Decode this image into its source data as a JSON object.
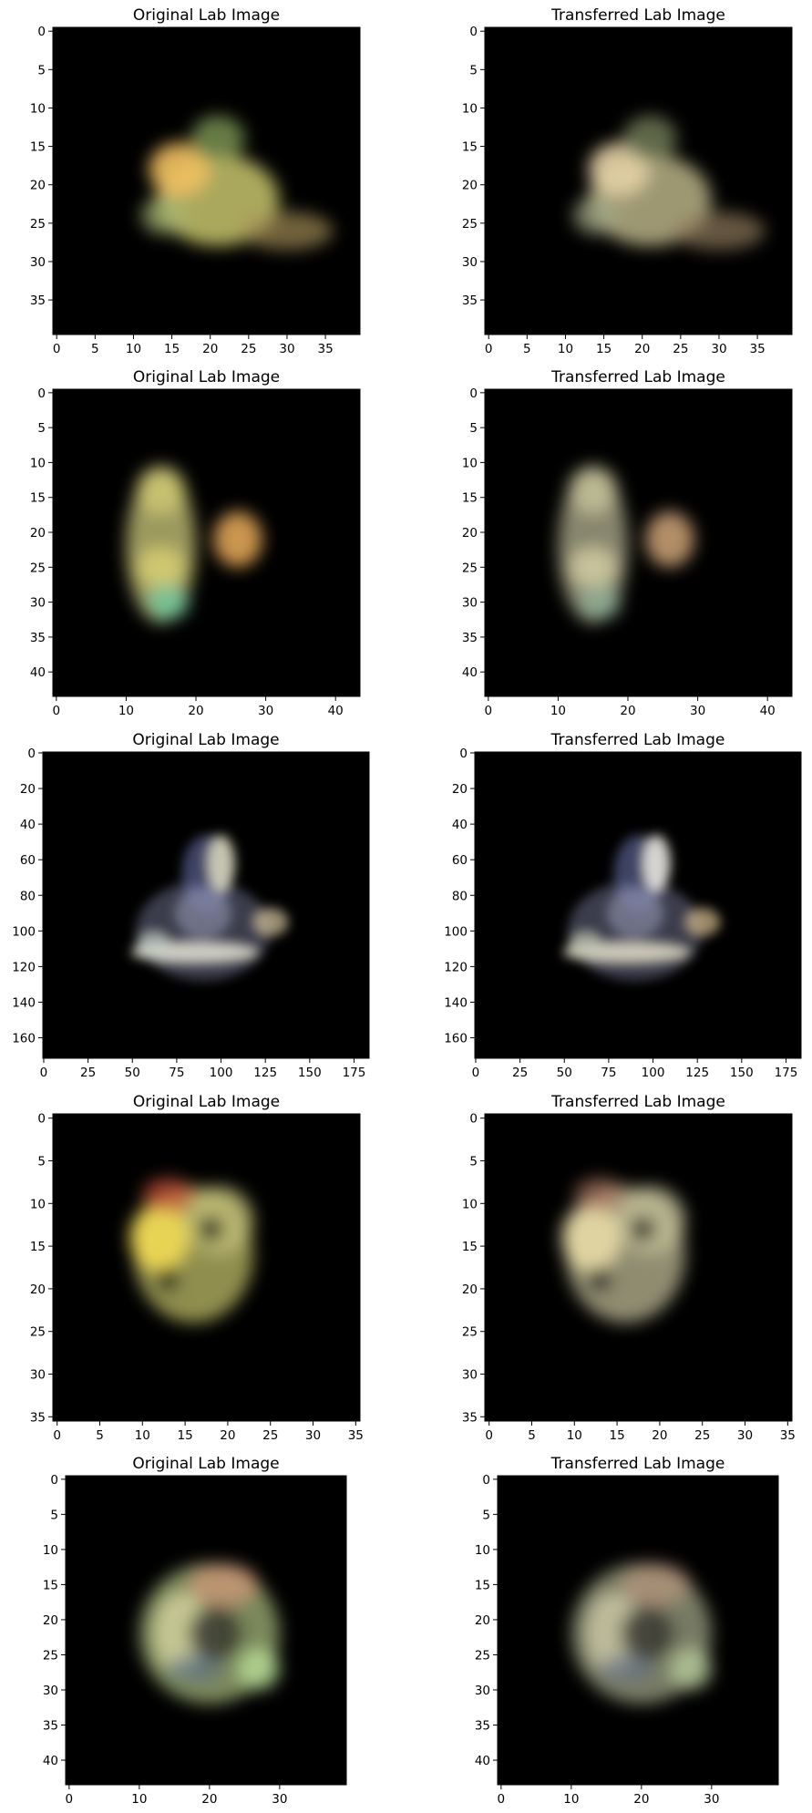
{
  "figure": {
    "background": "#ffffff",
    "image_background": "#000000"
  },
  "chart_data": [
    {
      "type": "heatmap",
      "title": "Original Lab Image",
      "width": 40,
      "height": 40,
      "xticks": [
        0,
        5,
        10,
        15,
        20,
        25,
        30,
        35
      ],
      "yticks": [
        0,
        5,
        10,
        15,
        20,
        25,
        30,
        35
      ],
      "blobs": [
        {
          "cx": 21,
          "cy": 22,
          "rx": 8,
          "ry": 6,
          "color": "#c8c66c",
          "opacity": 0.85
        },
        {
          "cx": 16,
          "cy": 18,
          "rx": 4,
          "ry": 3.5,
          "color": "#f0c060",
          "opacity": 0.9
        },
        {
          "cx": 21,
          "cy": 14,
          "rx": 3.5,
          "ry": 3,
          "color": "#7f9a55",
          "opacity": 0.8
        },
        {
          "cx": 30,
          "cy": 26,
          "rx": 6,
          "ry": 2.5,
          "color": "#a08a55",
          "opacity": 0.7
        },
        {
          "cx": 14,
          "cy": 24,
          "rx": 3,
          "ry": 2.5,
          "color": "#a5b775",
          "opacity": 0.7
        }
      ]
    },
    {
      "type": "heatmap",
      "title": "Transferred Lab Image",
      "width": 40,
      "height": 40,
      "xticks": [
        0,
        5,
        10,
        15,
        20,
        25,
        30,
        35
      ],
      "yticks": [
        0,
        5,
        10,
        15,
        20,
        25,
        30,
        35
      ],
      "blobs": [
        {
          "cx": 21,
          "cy": 22,
          "rx": 8,
          "ry": 6,
          "color": "#b9b386",
          "opacity": 0.85
        },
        {
          "cx": 17,
          "cy": 18,
          "rx": 4,
          "ry": 3.5,
          "color": "#e6d2a6",
          "opacity": 0.9
        },
        {
          "cx": 21,
          "cy": 14,
          "rx": 3.5,
          "ry": 3,
          "color": "#7d8a62",
          "opacity": 0.75
        },
        {
          "cx": 30,
          "cy": 26,
          "rx": 6,
          "ry": 2.5,
          "color": "#8f7b5c",
          "opacity": 0.7
        },
        {
          "cx": 14,
          "cy": 24,
          "rx": 3,
          "ry": 2.5,
          "color": "#a3a987",
          "opacity": 0.7
        }
      ]
    },
    {
      "type": "heatmap",
      "title": "Original Lab Image",
      "width": 44,
      "height": 44,
      "xticks": [
        0,
        10,
        20,
        30,
        40
      ],
      "yticks": [
        0,
        5,
        10,
        15,
        20,
        25,
        30,
        35,
        40
      ],
      "blobs": [
        {
          "cx": 15,
          "cy": 22,
          "rx": 5,
          "ry": 11,
          "color": "#b7b46e",
          "opacity": 0.85
        },
        {
          "cx": 15,
          "cy": 14,
          "rx": 3.5,
          "ry": 3.5,
          "color": "#d1c975",
          "opacity": 0.8
        },
        {
          "cx": 15,
          "cy": 25,
          "rx": 3.5,
          "ry": 3,
          "color": "#d8cf73",
          "opacity": 0.85
        },
        {
          "cx": 16,
          "cy": 30,
          "rx": 3,
          "ry": 2.5,
          "color": "#72c79c",
          "opacity": 0.85
        },
        {
          "cx": 26,
          "cy": 21,
          "rx": 3.5,
          "ry": 4,
          "color": "#e0a558",
          "opacity": 0.9
        }
      ]
    },
    {
      "type": "heatmap",
      "title": "Transferred Lab Image",
      "width": 44,
      "height": 44,
      "xticks": [
        0,
        10,
        20,
        30,
        40
      ],
      "yticks": [
        0,
        5,
        10,
        15,
        20,
        25,
        30,
        35,
        40
      ],
      "blobs": [
        {
          "cx": 15,
          "cy": 22,
          "rx": 5,
          "ry": 11,
          "color": "#a9a88a",
          "opacity": 0.8
        },
        {
          "cx": 15,
          "cy": 14,
          "rx": 3.5,
          "ry": 3.5,
          "color": "#c7c39a",
          "opacity": 0.8
        },
        {
          "cx": 15,
          "cy": 25,
          "rx": 3.5,
          "ry": 3,
          "color": "#d2cda2",
          "opacity": 0.85
        },
        {
          "cx": 16,
          "cy": 30,
          "rx": 3,
          "ry": 2.5,
          "color": "#8fae96",
          "opacity": 0.8
        },
        {
          "cx": 26,
          "cy": 21,
          "rx": 3.5,
          "ry": 4,
          "color": "#d1a77a",
          "opacity": 0.85
        }
      ]
    },
    {
      "type": "heatmap",
      "title": "Original Lab Image",
      "width": 184,
      "height": 172,
      "xticks": [
        0,
        25,
        50,
        75,
        100,
        125,
        150,
        175
      ],
      "yticks": [
        0,
        20,
        40,
        60,
        80,
        100,
        120,
        140,
        160
      ],
      "blobs": [
        {
          "cx": 90,
          "cy": 100,
          "rx": 38,
          "ry": 28,
          "color": "#6c6e8a",
          "opacity": 0.55
        },
        {
          "cx": 92,
          "cy": 68,
          "rx": 14,
          "ry": 22,
          "color": "#5a5f8e",
          "opacity": 0.7
        },
        {
          "cx": 100,
          "cy": 62,
          "rx": 8,
          "ry": 16,
          "color": "#e9e6c8",
          "opacity": 0.8
        },
        {
          "cx": 85,
          "cy": 112,
          "rx": 36,
          "ry": 6,
          "color": "#f2f0e0",
          "opacity": 0.8
        },
        {
          "cx": 128,
          "cy": 95,
          "rx": 10,
          "ry": 8,
          "color": "#d9c7a0",
          "opacity": 0.7
        },
        {
          "cx": 62,
          "cy": 108,
          "rx": 10,
          "ry": 8,
          "color": "#c7d0c8",
          "opacity": 0.7
        },
        {
          "cx": 90,
          "cy": 90,
          "rx": 16,
          "ry": 14,
          "color": "#9a9cb8",
          "opacity": 0.55
        }
      ]
    },
    {
      "type": "heatmap",
      "title": "Transferred Lab Image",
      "width": 184,
      "height": 172,
      "xticks": [
        0,
        25,
        50,
        75,
        100,
        125,
        150,
        175
      ],
      "yticks": [
        0,
        20,
        40,
        60,
        80,
        100,
        120,
        140,
        160
      ],
      "blobs": [
        {
          "cx": 90,
          "cy": 100,
          "rx": 38,
          "ry": 28,
          "color": "#6c6e8a",
          "opacity": 0.55
        },
        {
          "cx": 92,
          "cy": 68,
          "rx": 14,
          "ry": 22,
          "color": "#5a5f8e",
          "opacity": 0.7
        },
        {
          "cx": 102,
          "cy": 62,
          "rx": 8,
          "ry": 16,
          "color": "#f1efe6",
          "opacity": 0.85
        },
        {
          "cx": 85,
          "cy": 112,
          "rx": 36,
          "ry": 6,
          "color": "#efe9d2",
          "opacity": 0.8
        },
        {
          "cx": 128,
          "cy": 95,
          "rx": 10,
          "ry": 8,
          "color": "#d8bf8e",
          "opacity": 0.7
        },
        {
          "cx": 62,
          "cy": 108,
          "rx": 10,
          "ry": 8,
          "color": "#c5c9b4",
          "opacity": 0.7
        },
        {
          "cx": 90,
          "cy": 90,
          "rx": 16,
          "ry": 14,
          "color": "#9a9cb8",
          "opacity": 0.55
        }
      ]
    },
    {
      "type": "heatmap",
      "title": "Original Lab Image",
      "width": 36,
      "height": 36,
      "xticks": [
        0,
        5,
        10,
        15,
        20,
        25,
        30,
        35
      ],
      "yticks": [
        0,
        5,
        10,
        15,
        20,
        25,
        30,
        35
      ],
      "blobs": [
        {
          "cx": 16,
          "cy": 16,
          "rx": 7,
          "ry": 8,
          "color": "#a9a75c",
          "opacity": 0.85
        },
        {
          "cx": 12,
          "cy": 14,
          "rx": 3.5,
          "ry": 4,
          "color": "#f2dc55",
          "opacity": 0.9
        },
        {
          "cx": 13,
          "cy": 9,
          "rx": 3,
          "ry": 2,
          "color": "#d2563a",
          "opacity": 0.7
        },
        {
          "cx": 19,
          "cy": 12,
          "rx": 4,
          "ry": 4,
          "color": "#c3c17a",
          "opacity": 0.8
        },
        {
          "cx": 18,
          "cy": 13,
          "rx": 1.5,
          "ry": 1.5,
          "color": "#2d2d1e",
          "opacity": 0.9
        },
        {
          "cx": 13,
          "cy": 19,
          "rx": 1.5,
          "ry": 1.5,
          "color": "#2d2d1e",
          "opacity": 0.9
        }
      ]
    },
    {
      "type": "heatmap",
      "title": "Transferred Lab Image",
      "width": 36,
      "height": 36,
      "xticks": [
        0,
        5,
        10,
        15,
        20,
        25,
        30,
        35
      ],
      "yticks": [
        0,
        5,
        10,
        15,
        20,
        25,
        30,
        35
      ],
      "blobs": [
        {
          "cx": 16,
          "cy": 16,
          "rx": 7,
          "ry": 8,
          "color": "#a8a584",
          "opacity": 0.85
        },
        {
          "cx": 12,
          "cy": 14,
          "rx": 3.5,
          "ry": 4,
          "color": "#e8dba6",
          "opacity": 0.9
        },
        {
          "cx": 13,
          "cy": 9,
          "rx": 3,
          "ry": 2,
          "color": "#b8806a",
          "opacity": 0.65
        },
        {
          "cx": 19,
          "cy": 12,
          "rx": 4,
          "ry": 4,
          "color": "#c3bf98",
          "opacity": 0.8
        },
        {
          "cx": 18,
          "cy": 13,
          "rx": 1.5,
          "ry": 1.5,
          "color": "#2d2d24",
          "opacity": 0.9
        },
        {
          "cx": 13,
          "cy": 19,
          "rx": 1.5,
          "ry": 1.5,
          "color": "#2d2d24",
          "opacity": 0.9
        }
      ]
    },
    {
      "type": "heatmap",
      "title": "Original Lab Image",
      "width": 40,
      "height": 44,
      "xticks": [
        0,
        10,
        20,
        30
      ],
      "yticks": [
        0,
        5,
        10,
        15,
        20,
        25,
        30,
        35,
        40
      ],
      "blobs": [
        {
          "cx": 20,
          "cy": 22,
          "rx": 10,
          "ry": 10,
          "color": "#a6b779",
          "opacity": 0.75
        },
        {
          "cx": 16,
          "cy": 22,
          "rx": 4,
          "ry": 6,
          "color": "#d6d6a0",
          "opacity": 0.8
        },
        {
          "cx": 22,
          "cy": 15,
          "rx": 5,
          "ry": 3,
          "color": "#d09878",
          "opacity": 0.75
        },
        {
          "cx": 21,
          "cy": 22,
          "rx": 4,
          "ry": 4,
          "color": "#3a3a33",
          "opacity": 0.85
        },
        {
          "cx": 27,
          "cy": 27,
          "rx": 3,
          "ry": 3,
          "color": "#b9e099",
          "opacity": 0.8
        },
        {
          "cx": 18,
          "cy": 27,
          "rx": 4,
          "ry": 2,
          "color": "#5b6e85",
          "opacity": 0.7
        }
      ]
    },
    {
      "type": "heatmap",
      "title": "Transferred Lab Image",
      "width": 40,
      "height": 44,
      "xticks": [
        0,
        10,
        20,
        30
      ],
      "yticks": [
        0,
        5,
        10,
        15,
        20,
        25,
        30,
        35,
        40
      ],
      "blobs": [
        {
          "cx": 20,
          "cy": 22,
          "rx": 10,
          "ry": 10,
          "color": "#a0a585",
          "opacity": 0.75
        },
        {
          "cx": 16,
          "cy": 22,
          "rx": 4,
          "ry": 6,
          "color": "#cdc9a6",
          "opacity": 0.8
        },
        {
          "cx": 22,
          "cy": 15,
          "rx": 5,
          "ry": 3,
          "color": "#b9967f",
          "opacity": 0.7
        },
        {
          "cx": 21,
          "cy": 22,
          "rx": 4,
          "ry": 4,
          "color": "#3a3a33",
          "opacity": 0.85
        },
        {
          "cx": 27,
          "cy": 27,
          "rx": 3,
          "ry": 3,
          "color": "#b7c99a",
          "opacity": 0.8
        },
        {
          "cx": 18,
          "cy": 27,
          "rx": 4,
          "ry": 2,
          "color": "#647083",
          "opacity": 0.7
        }
      ]
    }
  ]
}
